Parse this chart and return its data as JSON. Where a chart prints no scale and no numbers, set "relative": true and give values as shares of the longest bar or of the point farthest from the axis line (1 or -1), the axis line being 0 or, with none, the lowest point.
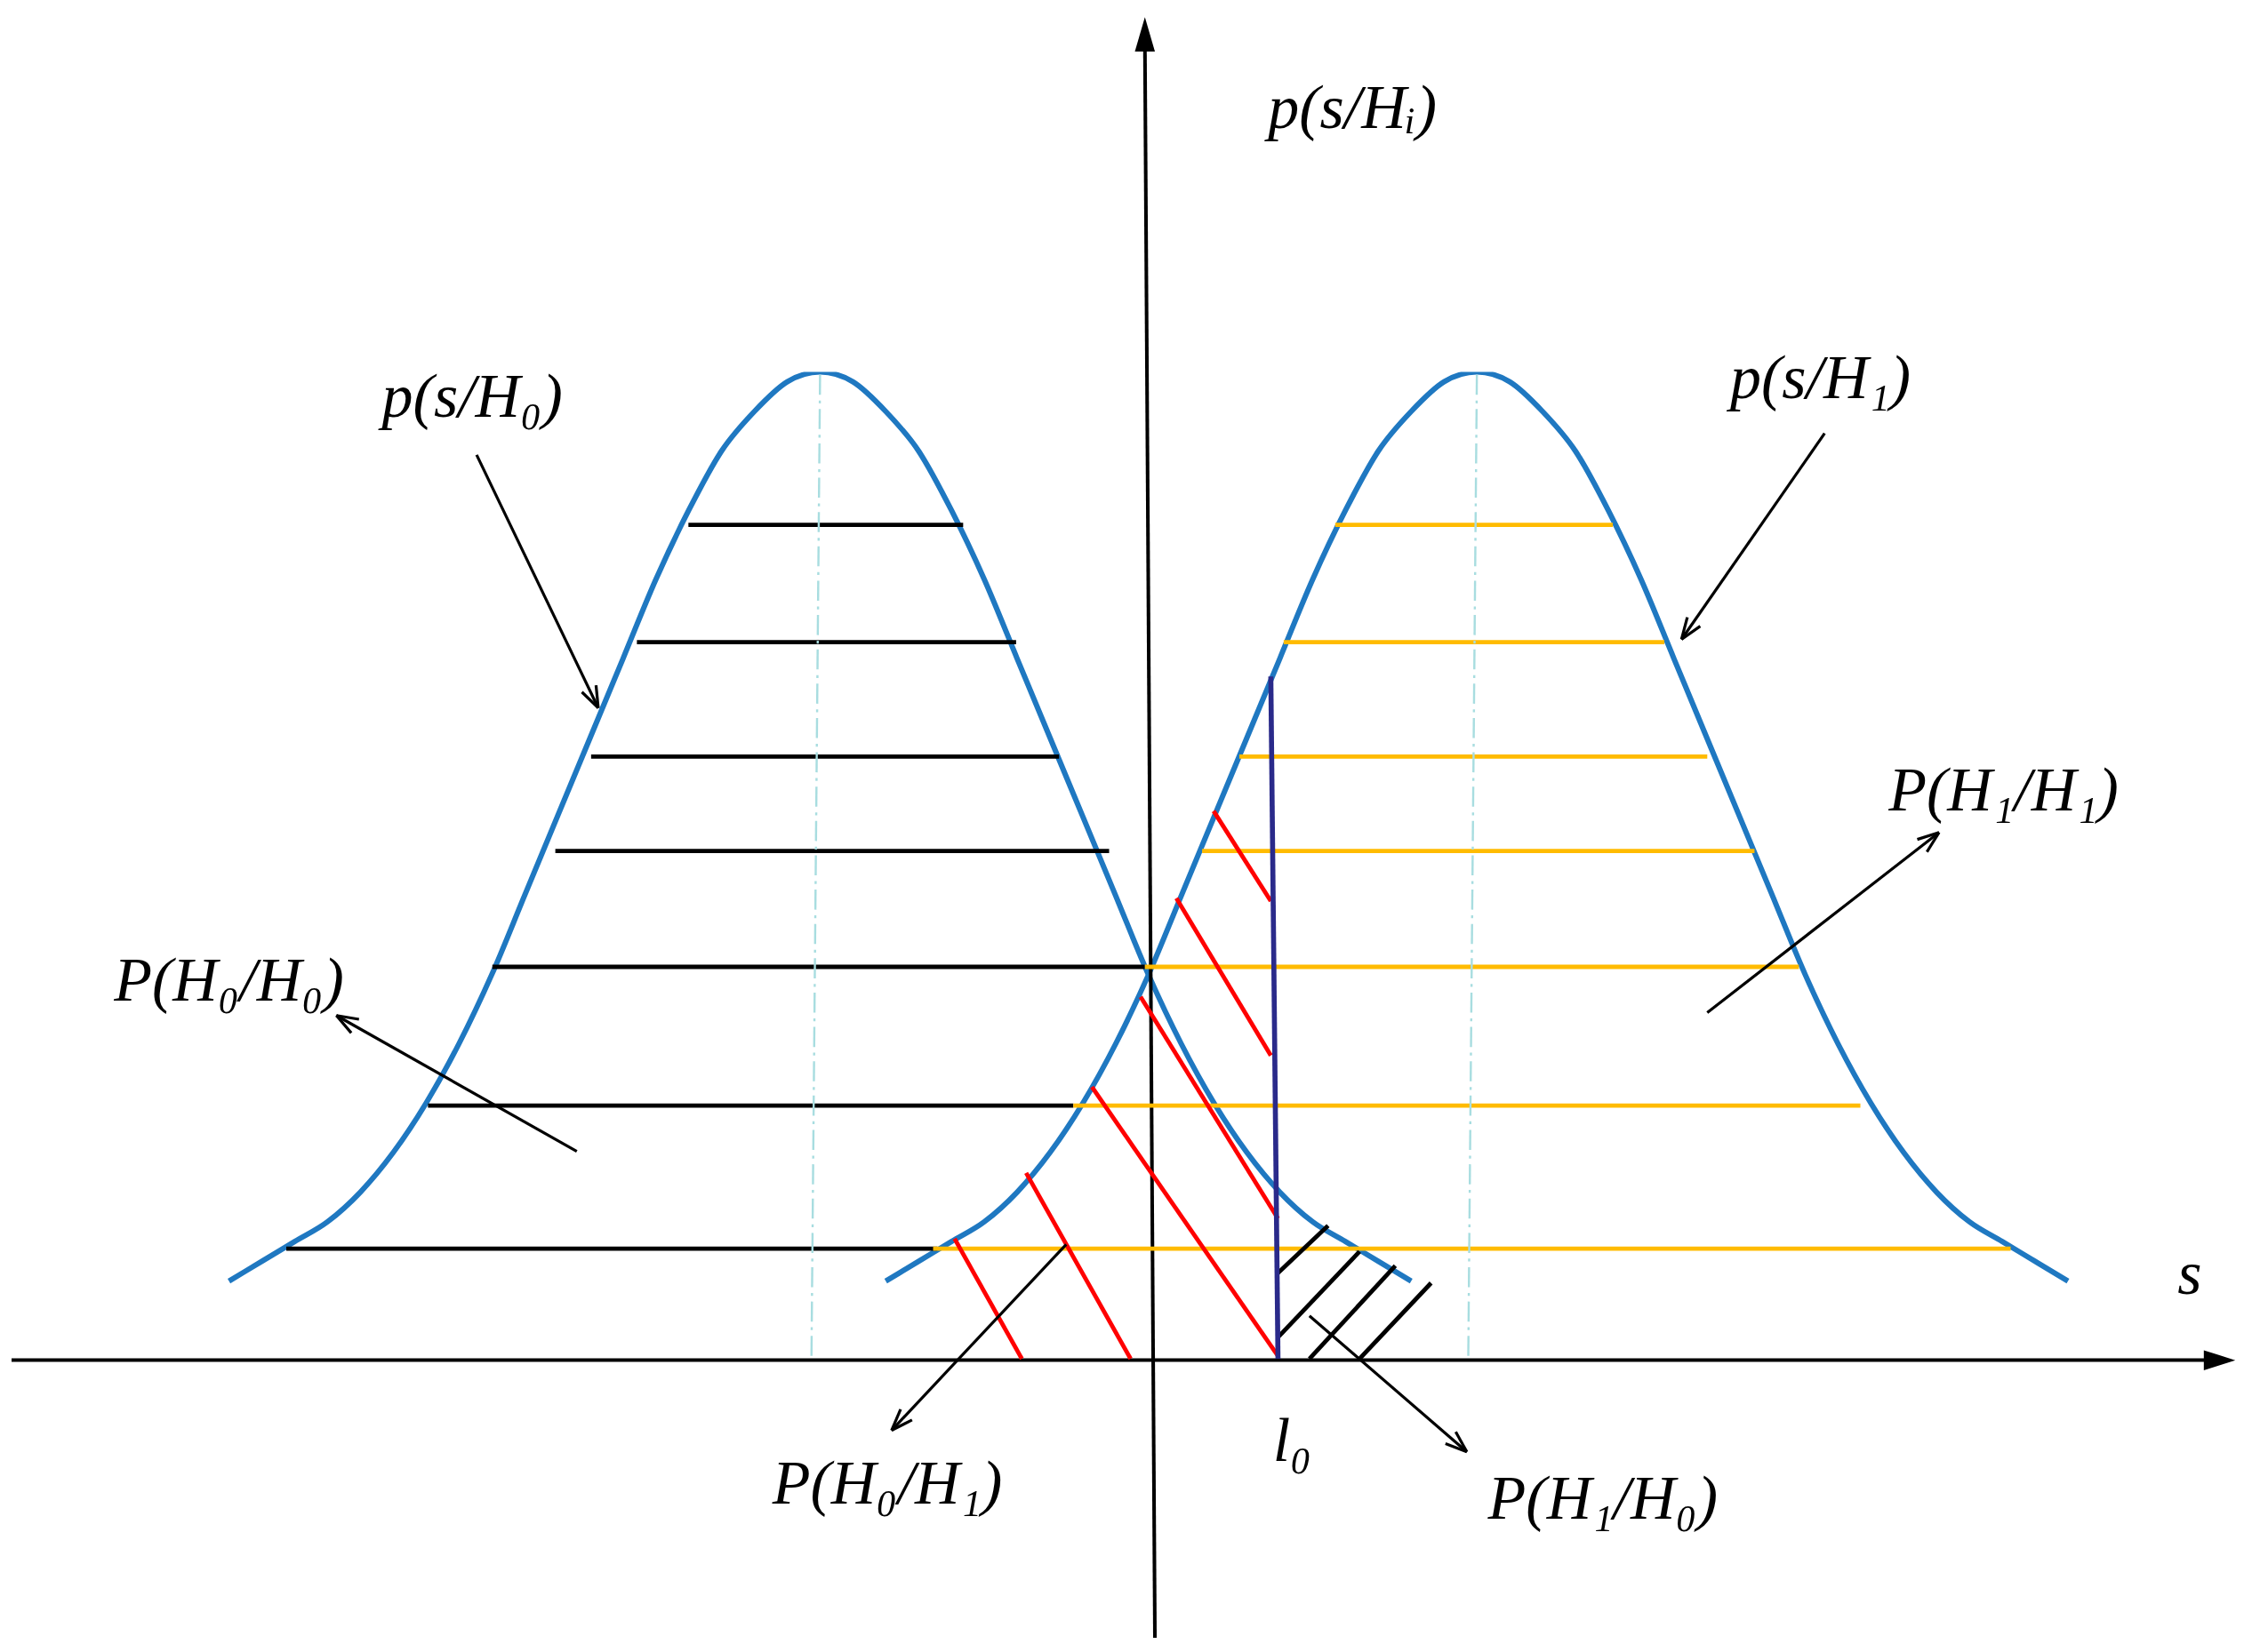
{
  "chart_data": {
    "type": "line",
    "relative": true,
    "marker": "none",
    "xlabel": "s",
    "ylabel": "p(s/Hᵢ)",
    "categories": [
      null,
      null,
      null,
      null,
      null,
      null,
      null,
      null,
      null,
      null,
      null,
      null,
      null,
      null,
      null,
      null,
      null,
      null,
      null,
      null,
      null,
      null,
      null,
      null,
      null,
      null,
      null,
      null,
      null,
      null,
      null,
      null,
      null,
      null,
      null,
      null,
      null,
      null,
      null,
      null,
      null,
      null,
      null,
      null,
      null,
      null,
      null,
      null,
      null,
      null,
      null,
      null,
      null,
      null,
      null,
      null,
      null
    ],
    "series": [
      {
        "name": "p(s/H₀)",
        "color": "#1f78c1",
        "values": [
          0.08,
          0.1,
          0.12,
          0.14,
          0.17,
          0.21,
          0.26,
          0.32,
          0.39,
          0.47,
          0.55,
          0.63,
          0.71,
          0.79,
          0.86,
          0.92,
          0.96,
          0.99,
          1.0,
          0.99,
          0.96,
          0.92,
          0.86,
          0.79,
          0.71,
          0.63,
          0.55,
          0.47,
          0.39,
          0.32,
          0.26,
          0.21,
          0.17,
          0.14,
          0.12,
          0.1,
          0.08,
          null,
          null,
          null,
          null,
          null,
          null,
          null,
          null,
          null,
          null,
          null,
          null,
          null,
          null,
          null,
          null,
          null,
          null,
          null,
          null
        ]
      },
      {
        "name": "p(s/H₁)",
        "color": "#1f78c1",
        "values": [
          null,
          null,
          null,
          null,
          null,
          null,
          null,
          null,
          null,
          null,
          null,
          null,
          null,
          null,
          null,
          null,
          null,
          null,
          null,
          null,
          0.08,
          0.1,
          0.12,
          0.14,
          0.17,
          0.21,
          0.26,
          0.32,
          0.39,
          0.47,
          0.55,
          0.63,
          0.71,
          0.79,
          0.86,
          0.92,
          0.96,
          0.99,
          1.0,
          0.99,
          0.96,
          0.92,
          0.86,
          0.79,
          0.71,
          0.63,
          0.55,
          0.47,
          0.39,
          0.32,
          0.26,
          0.21,
          0.17,
          0.14,
          0.12,
          0.1,
          0.08
        ]
      }
    ],
    "annotations": [
      "P(H₀/H₀)",
      "P(H₁/H₁)",
      "P(H₀/H₁)",
      "P(H₁/H₀)",
      "l₀"
    ]
  }
}
